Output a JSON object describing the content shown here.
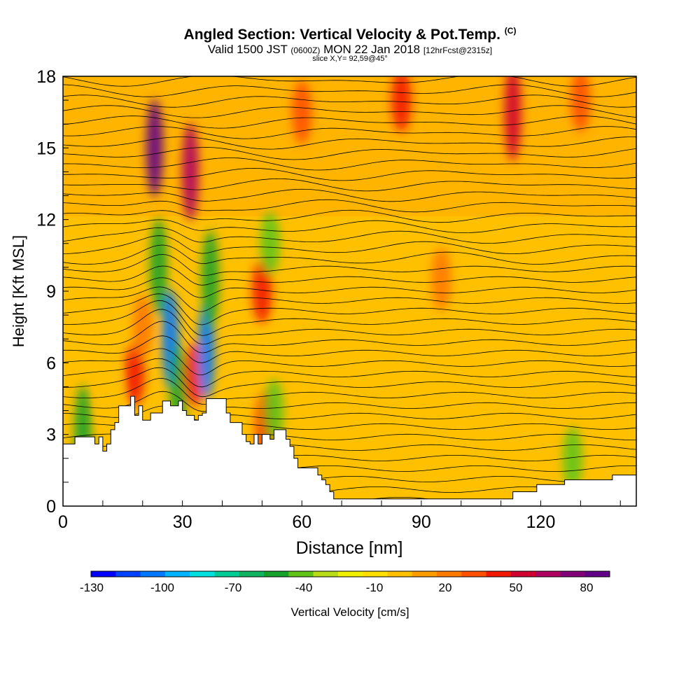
{
  "header": {
    "title": "Angled Section: Vertical Velocity & Pot.Temp.",
    "title_unit": "(C)",
    "valid_prefix": "Valid 1500 JST",
    "valid_utc": "(0600Z)",
    "valid_date": "MON 22 Jan 2018",
    "valid_fcst": "[12hrFcst@2315z]",
    "slice": "slice X,Y= 92,59@45°"
  },
  "chart_data": {
    "type": "heatmap",
    "title": "Angled Section: Vertical Velocity & Pot.Temp.",
    "xlabel": "Distance [nm]",
    "ylabel": "Height [Kft MSL]",
    "xlim": [
      0,
      144
    ],
    "ylim": [
      0,
      18
    ],
    "x_ticks": [
      0,
      30,
      60,
      90,
      120
    ],
    "y_ticks": [
      0,
      3,
      6,
      9,
      12,
      15,
      18
    ],
    "colorbar": {
      "label": "Vertical Velocity [cm/s]",
      "tick_values": [
        -130,
        -100,
        -70,
        -40,
        -10,
        20,
        50,
        80
      ],
      "min": -135,
      "max": 90,
      "colors": [
        "#0000ff",
        "#0040ff",
        "#0078ff",
        "#00b4ff",
        "#00e0e0",
        "#00cc96",
        "#10b460",
        "#16a22a",
        "#60c418",
        "#b8dc18",
        "#f0f000",
        "#ffe000",
        "#ffc000",
        "#ff9c00",
        "#ff7800",
        "#ff5000",
        "#f21800",
        "#d00030",
        "#b00060",
        "#820078",
        "#620088"
      ]
    },
    "series": [
      {
        "values": [
          {
            "x": 5,
            "y": 3.0,
            "w": -60
          },
          {
            "x": 12,
            "y": 4.5,
            "w": 0
          },
          {
            "x": 18,
            "y": 5.5,
            "w": 45
          },
          {
            "x": 20,
            "y": 7.5,
            "w": 20
          },
          {
            "x": 23,
            "y": 15.0,
            "w": 90
          },
          {
            "x": 24,
            "y": 10.0,
            "w": -60
          },
          {
            "x": 27,
            "y": 7.0,
            "w": -110
          },
          {
            "x": 29,
            "y": 4.8,
            "w": -60
          },
          {
            "x": 32,
            "y": 14.0,
            "w": 65
          },
          {
            "x": 33,
            "y": 5.5,
            "w": 40
          },
          {
            "x": 36,
            "y": 6.5,
            "w": -110
          },
          {
            "x": 37,
            "y": 9.5,
            "w": -60
          },
          {
            "x": 50,
            "y": 9.0,
            "w": 40
          },
          {
            "x": 51,
            "y": 3.5,
            "w": 40
          },
          {
            "x": 52,
            "y": 11.0,
            "w": -45
          },
          {
            "x": 53,
            "y": 4.0,
            "w": -40
          },
          {
            "x": 60,
            "y": 16.5,
            "w": 35
          },
          {
            "x": 85,
            "y": 17.0,
            "w": 40
          },
          {
            "x": 95,
            "y": 9.5,
            "w": 15
          },
          {
            "x": 113,
            "y": 16.5,
            "w": 55
          },
          {
            "x": 128,
            "y": 2.0,
            "w": -40
          },
          {
            "x": 130,
            "y": 17.0,
            "w": 30
          }
        ]
      }
    ]
  },
  "colorbar_labels": {
    "t0": "-130",
    "t1": "-100",
    "t2": "-70",
    "t3": "-40",
    "t4": "-10",
    "t5": "20",
    "t6": "50",
    "t7": "80"
  }
}
